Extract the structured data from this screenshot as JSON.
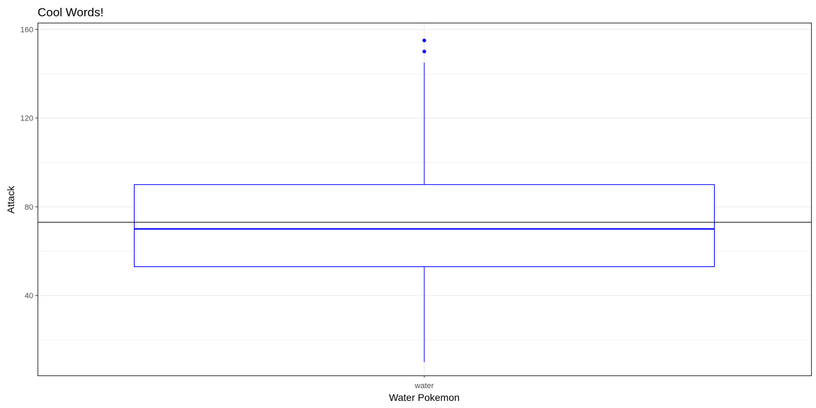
{
  "chart_data": {
    "type": "boxplot",
    "title": "Cool Words!",
    "xlabel": "Water Pokemon",
    "ylabel": "Attack",
    "categories": [
      "water"
    ],
    "ylim": [
      4,
      163
    ],
    "yticks": [
      40,
      80,
      120,
      160
    ],
    "grid": true,
    "boxes": [
      {
        "category": "water",
        "whisker_low": 10,
        "q1": 53,
        "median": 70,
        "q3": 90,
        "whisker_high": 145,
        "outliers": [
          150,
          155
        ]
      }
    ],
    "reference_line": {
      "y": 73
    },
    "colors": {
      "box": "#0000ff",
      "reference_line": "#000000",
      "grid": "#ebebeb",
      "panel_border": "#333333"
    }
  }
}
